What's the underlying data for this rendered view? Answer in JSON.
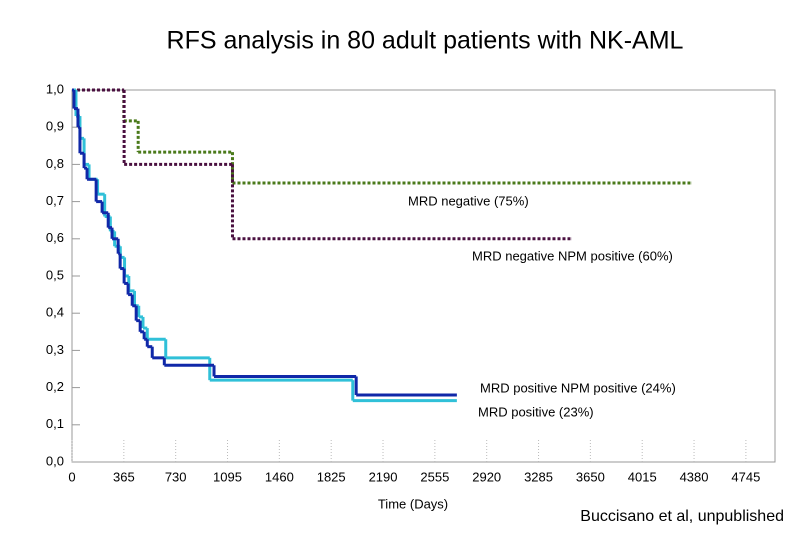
{
  "chart_data": {
    "type": "step",
    "title": "RFS analysis in 80 adult patients with NK-AML",
    "x_label": "Time (Days)",
    "annotations": [
      "MRD negative (75%)",
      "MRD negative NPM positive (60%)",
      "MRD positive NPM positive (24%)",
      "MRD positive (23%)"
    ],
    "source": "Buccisano et al, unpublished",
    "xlim": [
      0,
      4950
    ],
    "ylim": [
      0,
      1
    ],
    "xticks": [
      0,
      365,
      730,
      1095,
      1460,
      1825,
      2190,
      2555,
      2920,
      3285,
      3650,
      4015,
      4380,
      4745
    ],
    "yticks": [
      {
        "value": 0,
        "label": "0,0"
      },
      {
        "value": 0.1,
        "label": "0,1"
      },
      {
        "value": 0.2,
        "label": "0,2"
      },
      {
        "value": 0.3,
        "label": "0,3"
      },
      {
        "value": 0.4,
        "label": "0,4"
      },
      {
        "value": 0.5,
        "label": "0,5"
      },
      {
        "value": 0.6,
        "label": "0,6"
      },
      {
        "value": 0.7,
        "label": "0,7"
      },
      {
        "value": 0.8,
        "label": "0,8"
      },
      {
        "value": 0.9,
        "label": "0,9"
      },
      {
        "value": 1,
        "label": "1,0"
      }
    ],
    "series": [
      {
        "color": "#4a7a1a",
        "dash": "3 2",
        "x": [
          0,
          365,
          466,
          1130,
          4363
        ],
        "values": [
          1,
          0.917,
          0.833,
          0.75,
          0.75
        ]
      },
      {
        "color": "#4a1040",
        "dash": "3 2",
        "x": [
          0,
          367,
          1130,
          3516
        ],
        "values": [
          1,
          0.8,
          0.6,
          0.6
        ]
      },
      {
        "color": "#30c0d8",
        "dash": "none",
        "x": [
          0,
          28,
          56,
          85,
          120,
          180,
          230,
          270,
          300,
          340,
          370,
          400,
          440,
          470,
          500,
          530,
          660,
          970,
          1977,
          2710
        ],
        "values": [
          1,
          0.93,
          0.87,
          0.8,
          0.76,
          0.72,
          0.66,
          0.62,
          0.58,
          0.55,
          0.5,
          0.46,
          0.42,
          0.39,
          0.36,
          0.33,
          0.28,
          0.22,
          0.165,
          0.165
        ]
      },
      {
        "color": "#1028a8",
        "dash": "none",
        "x": [
          0,
          14,
          42,
          56,
          85,
          106,
          170,
          212,
          255,
          282,
          325,
          339,
          367,
          395,
          424,
          452,
          480,
          508,
          530,
          565,
          650,
          1000,
          2001,
          2710
        ],
        "values": [
          1,
          0.95,
          0.9,
          0.83,
          0.79,
          0.76,
          0.7,
          0.67,
          0.63,
          0.6,
          0.56,
          0.52,
          0.48,
          0.45,
          0.42,
          0.38,
          0.35,
          0.33,
          0.31,
          0.28,
          0.26,
          0.23,
          0.18,
          0.18
        ]
      }
    ]
  }
}
